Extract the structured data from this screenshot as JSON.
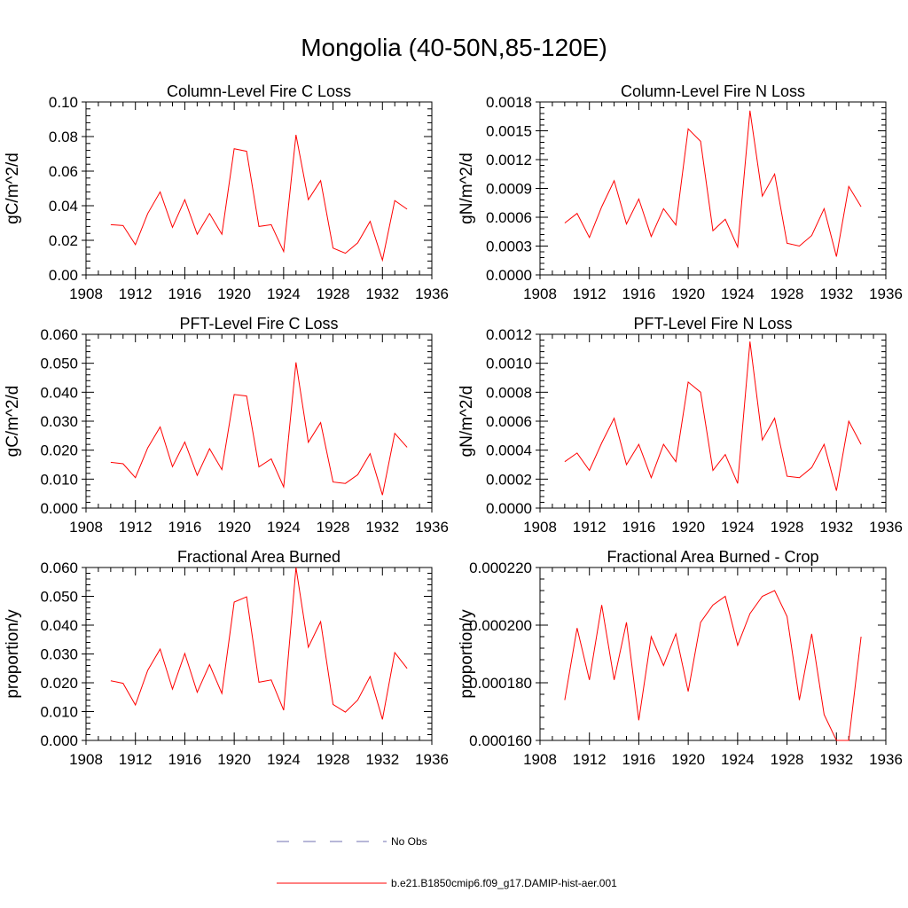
{
  "figure": {
    "title": "Mongolia (40-50N,85-120E)",
    "legend": [
      {
        "label": "No Obs",
        "color": "#6f6fb0",
        "style": "dashed"
      },
      {
        "label": "b.e21.B1850cmip6.f09_g17.DAMIP-hist-aer.001",
        "color": "#ff0000",
        "style": "solid"
      }
    ]
  },
  "chart_data": [
    {
      "type": "line",
      "title": "Column-Level Fire C Loss",
      "ylabel": "gC/m^2/d",
      "xlim": [
        1908,
        1936
      ],
      "xticks": [
        "1908",
        "1912",
        "1916",
        "1920",
        "1924",
        "1928",
        "1932",
        "1936"
      ],
      "ylim": [
        0,
        0.1
      ],
      "yticks": [
        "0.00",
        "0.02",
        "0.04",
        "0.06",
        "0.08",
        "0.10"
      ],
      "x": [
        1910,
        1911,
        1912,
        1913,
        1914,
        1915,
        1916,
        1917,
        1918,
        1919,
        1920,
        1921,
        1922,
        1923,
        1924,
        1925,
        1926,
        1927,
        1928,
        1929,
        1930,
        1931,
        1932,
        1933,
        1934
      ],
      "series": [
        {
          "color": "#ff0000",
          "values": [
            0.029,
            0.0285,
            0.0175,
            0.0355,
            0.048,
            0.0275,
            0.0435,
            0.0235,
            0.0355,
            0.0235,
            0.073,
            0.0715,
            0.028,
            0.029,
            0.0135,
            0.081,
            0.0435,
            0.0545,
            0.0155,
            0.0125,
            0.0185,
            0.031,
            0.0085,
            0.043,
            0.038
          ]
        }
      ]
    },
    {
      "type": "line",
      "title": "Column-Level Fire N Loss",
      "ylabel": "gN/m^2/d",
      "xlim": [
        1908,
        1936
      ],
      "xticks": [
        "1908",
        "1912",
        "1916",
        "1920",
        "1924",
        "1928",
        "1932",
        "1936"
      ],
      "ylim": [
        0,
        0.0018
      ],
      "yticks": [
        "0.0000",
        "0.0003",
        "0.0006",
        "0.0009",
        "0.0012",
        "0.0015",
        "0.0018"
      ],
      "x": [
        1910,
        1911,
        1912,
        1913,
        1914,
        1915,
        1916,
        1917,
        1918,
        1919,
        1920,
        1921,
        1922,
        1923,
        1924,
        1925,
        1926,
        1927,
        1928,
        1929,
        1930,
        1931,
        1932,
        1933,
        1934
      ],
      "series": [
        {
          "color": "#ff0000",
          "values": [
            0.00054,
            0.00064,
            0.00039,
            0.00071,
            0.00098,
            0.00053,
            0.00079,
            0.0004,
            0.00069,
            0.00052,
            0.00152,
            0.00139,
            0.00046,
            0.00058,
            0.00029,
            0.00171,
            0.00082,
            0.00105,
            0.00033,
            0.0003,
            0.00041,
            0.00069,
            0.00019,
            0.00092,
            0.00071
          ]
        }
      ]
    },
    {
      "type": "line",
      "title": "PFT-Level Fire C Loss",
      "ylabel": "gC/m^2/d",
      "xlim": [
        1908,
        1936
      ],
      "xticks": [
        "1908",
        "1912",
        "1916",
        "1920",
        "1924",
        "1928",
        "1932",
        "1936"
      ],
      "ylim": [
        0,
        0.06
      ],
      "yticks": [
        "0.000",
        "0.010",
        "0.020",
        "0.030",
        "0.040",
        "0.050",
        "0.060"
      ],
      "x": [
        1910,
        1911,
        1912,
        1913,
        1914,
        1915,
        1916,
        1917,
        1918,
        1919,
        1920,
        1921,
        1922,
        1923,
        1924,
        1925,
        1926,
        1927,
        1928,
        1929,
        1930,
        1931,
        1932,
        1933,
        1934
      ],
      "series": [
        {
          "color": "#ff0000",
          "values": [
            0.0158,
            0.0153,
            0.0105,
            0.0208,
            0.028,
            0.0143,
            0.0228,
            0.0113,
            0.0205,
            0.0133,
            0.0392,
            0.0387,
            0.0142,
            0.017,
            0.0073,
            0.0503,
            0.0227,
            0.0295,
            0.009,
            0.0085,
            0.0115,
            0.0188,
            0.0045,
            0.0258,
            0.021
          ]
        }
      ]
    },
    {
      "type": "line",
      "title": "PFT-Level Fire N Loss",
      "ylabel": "gN/m^2/d",
      "xlim": [
        1908,
        1936
      ],
      "xticks": [
        "1908",
        "1912",
        "1916",
        "1920",
        "1924",
        "1928",
        "1932",
        "1936"
      ],
      "ylim": [
        0,
        0.0012
      ],
      "yticks": [
        "0.0000",
        "0.0002",
        "0.0004",
        "0.0006",
        "0.0008",
        "0.0010",
        "0.0012"
      ],
      "x": [
        1910,
        1911,
        1912,
        1913,
        1914,
        1915,
        1916,
        1917,
        1918,
        1919,
        1920,
        1921,
        1922,
        1923,
        1924,
        1925,
        1926,
        1927,
        1928,
        1929,
        1930,
        1931,
        1932,
        1933,
        1934
      ],
      "series": [
        {
          "color": "#ff0000",
          "values": [
            0.00032,
            0.00038,
            0.00026,
            0.00045,
            0.00062,
            0.0003,
            0.00044,
            0.00021,
            0.00044,
            0.00032,
            0.00087,
            0.0008,
            0.00026,
            0.00037,
            0.00017,
            0.00115,
            0.00047,
            0.00062,
            0.00022,
            0.00021,
            0.00028,
            0.00044,
            0.00012,
            0.0006,
            0.00044
          ]
        }
      ]
    },
    {
      "type": "line",
      "title": "Fractional Area Burned",
      "ylabel": "proportion/y",
      "xlim": [
        1908,
        1936
      ],
      "xticks": [
        "1908",
        "1912",
        "1916",
        "1920",
        "1924",
        "1928",
        "1932",
        "1936"
      ],
      "ylim": [
        0,
        0.06
      ],
      "yticks": [
        "0.000",
        "0.010",
        "0.020",
        "0.030",
        "0.040",
        "0.050",
        "0.060"
      ],
      "x": [
        1910,
        1911,
        1912,
        1913,
        1914,
        1915,
        1916,
        1917,
        1918,
        1919,
        1920,
        1921,
        1922,
        1923,
        1924,
        1925,
        1926,
        1927,
        1928,
        1929,
        1930,
        1931,
        1932,
        1933,
        1934
      ],
      "series": [
        {
          "color": "#ff0000",
          "values": [
            0.0207,
            0.0198,
            0.0123,
            0.0243,
            0.0317,
            0.0178,
            0.0302,
            0.0167,
            0.0263,
            0.0163,
            0.048,
            0.0498,
            0.0202,
            0.021,
            0.0105,
            0.06,
            0.0323,
            0.0412,
            0.0125,
            0.0098,
            0.014,
            0.0222,
            0.0073,
            0.0305,
            0.025
          ]
        }
      ]
    },
    {
      "type": "line",
      "title": "Fractional Area Burned - Crop",
      "ylabel": "proportion/y",
      "xlim": [
        1908,
        1936
      ],
      "xticks": [
        "1908",
        "1912",
        "1916",
        "1920",
        "1924",
        "1928",
        "1932",
        "1936"
      ],
      "ylim": [
        0.00016,
        0.00022
      ],
      "yticks": [
        "0.000160",
        "0.000180",
        "0.000200",
        "0.000220"
      ],
      "x": [
        1910,
        1911,
        1912,
        1913,
        1914,
        1915,
        1916,
        1917,
        1918,
        1919,
        1920,
        1921,
        1922,
        1923,
        1924,
        1925,
        1926,
        1927,
        1928,
        1929,
        1930,
        1931,
        1932,
        1933,
        1934
      ],
      "series": [
        {
          "color": "#ff0000",
          "values": [
            0.000174,
            0.000199,
            0.000181,
            0.000207,
            0.000181,
            0.000201,
            0.000167,
            0.000196,
            0.000186,
            0.000197,
            0.000177,
            0.000201,
            0.000207,
            0.00021,
            0.000193,
            0.000204,
            0.00021,
            0.000212,
            0.000203,
            0.000174,
            0.000197,
            0.000169,
            0.00016,
            0.00016,
            0.000196
          ]
        }
      ]
    }
  ]
}
